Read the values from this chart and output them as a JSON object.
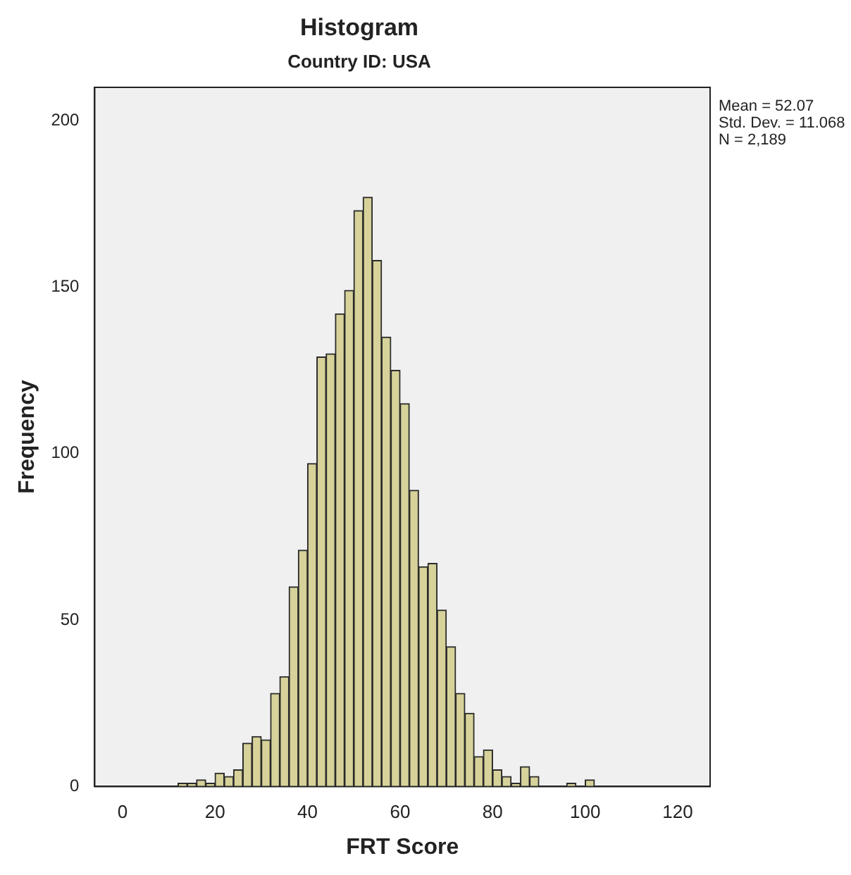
{
  "chart_data": {
    "type": "histogram",
    "title": "Histogram",
    "subtitle": "Country ID: USA",
    "xlabel": "FRT Score",
    "ylabel": "Frequency",
    "bins": [
      12,
      14,
      16,
      18,
      20,
      22,
      24,
      26,
      28,
      30,
      32,
      34,
      36,
      38,
      40,
      42,
      44,
      46,
      48,
      50,
      52,
      54,
      56,
      58,
      60,
      62,
      64,
      66,
      68,
      70,
      72,
      74,
      76,
      78,
      80,
      82,
      84,
      86,
      88,
      90,
      92,
      94,
      96,
      98,
      100,
      102
    ],
    "values": [
      1,
      1,
      2,
      1,
      4,
      3,
      5,
      13,
      15,
      14,
      28,
      33,
      60,
      71,
      97,
      129,
      130,
      142,
      149,
      173,
      177,
      158,
      135,
      125,
      115,
      89,
      66,
      67,
      53,
      42,
      28,
      22,
      9,
      11,
      5,
      3,
      1,
      6,
      3,
      0,
      0,
      0,
      1,
      0,
      2
    ],
    "color": "#d6d29a",
    "xlim": [
      -6,
      127
    ],
    "xticks": [
      0,
      20,
      40,
      60,
      80,
      100,
      120
    ],
    "ylim": [
      0,
      210
    ],
    "yticks": [
      0,
      50,
      100,
      150,
      200
    ],
    "grid": false,
    "legend": false,
    "annotations": [
      "Mean = 52.07",
      "Std. Dev. = 11.068",
      "N = 2,189"
    ]
  }
}
